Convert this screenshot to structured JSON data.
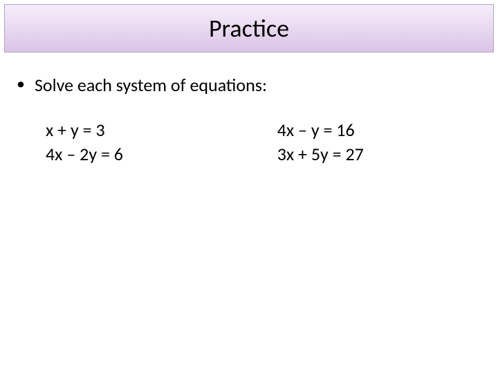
{
  "slide": {
    "title": "Practice",
    "title_banner": {
      "gradient_top": "#f5eef9",
      "gradient_mid": "#e8d9f0",
      "gradient_bottom": "#d9c3e6",
      "border_color": "#b89fc9",
      "title_fontsize": 36,
      "title_color": "#000000"
    },
    "bullet_char": "•",
    "instruction": "Solve each system of equations:",
    "systems": [
      {
        "equations": [
          "x + y = 3",
          "4x – 2y = 6"
        ]
      },
      {
        "equations": [
          "4x – y = 16",
          "3x + 5y = 27"
        ]
      }
    ],
    "body_fontsize": 26,
    "text_color": "#000000",
    "background_color": "#ffffff"
  }
}
